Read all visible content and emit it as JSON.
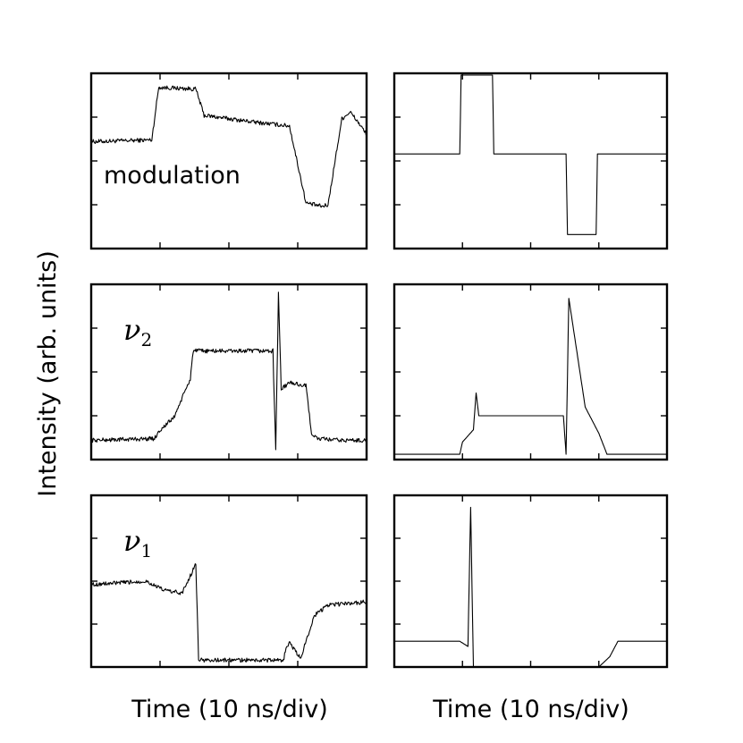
{
  "figure": {
    "ylabel": "Intensity (arb. units)",
    "xlabel_left": "Time (10 ns/div)",
    "xlabel_right": "Time (10 ns/div)"
  },
  "chart_data": [
    {
      "type": "line",
      "panel": "top-left",
      "label": "modulation",
      "kind": "measured",
      "x_ticks_per_axis": 3,
      "y_ticks_per_axis": 3,
      "ylim": [
        0,
        1
      ],
      "series": [
        {
          "x": [
            0,
            0.22,
            0.245,
            0.38,
            0.41,
            0.6,
            0.66,
            0.72,
            0.78,
            0.84,
            0.86,
            0.91,
            0.94,
            0.97,
            1.0
          ],
          "y": [
            0.61,
            0.62,
            0.92,
            0.91,
            0.76,
            0.72,
            0.71,
            0.7,
            0.26,
            0.24,
            0.25,
            0.74,
            0.78,
            0.72,
            0.65
          ]
        }
      ]
    },
    {
      "type": "line",
      "panel": "top-right",
      "kind": "simulated",
      "x_ticks_per_axis": 3,
      "y_ticks_per_axis": 3,
      "ylim": [
        0,
        1
      ],
      "series": [
        {
          "x": [
            0,
            0.24,
            0.245,
            0.36,
            0.365,
            0.63,
            0.635,
            0.74,
            0.745,
            1.0
          ],
          "y": [
            0.54,
            0.54,
            0.99,
            0.99,
            0.54,
            0.54,
            0.08,
            0.08,
            0.54,
            0.54
          ]
        }
      ]
    },
    {
      "type": "line",
      "panel": "middle-left",
      "label_base": "ν",
      "label_sub": "2",
      "kind": "measured",
      "x_ticks_per_axis": 3,
      "y_ticks_per_axis": 3,
      "ylim": [
        0,
        1
      ],
      "series": [
        {
          "x": [
            0,
            0.23,
            0.245,
            0.3,
            0.36,
            0.37,
            0.66,
            0.67,
            0.68,
            0.69,
            0.72,
            0.78,
            0.8,
            0.82,
            0.9,
            1.0
          ],
          "y": [
            0.11,
            0.12,
            0.16,
            0.24,
            0.46,
            0.62,
            0.62,
            0.05,
            0.95,
            0.4,
            0.44,
            0.42,
            0.15,
            0.12,
            0.11,
            0.11
          ]
        }
      ]
    },
    {
      "type": "line",
      "panel": "middle-right",
      "kind": "simulated",
      "x_ticks_per_axis": 3,
      "y_ticks_per_axis": 3,
      "ylim": [
        0,
        1
      ],
      "series": [
        {
          "x": [
            0,
            0.24,
            0.25,
            0.29,
            0.3,
            0.31,
            0.62,
            0.63,
            0.64,
            0.7,
            0.75,
            0.78,
            1.0
          ],
          "y": [
            0.03,
            0.03,
            0.1,
            0.17,
            0.38,
            0.25,
            0.25,
            0.03,
            0.92,
            0.3,
            0.15,
            0.03,
            0.03
          ]
        }
      ]
    },
    {
      "type": "line",
      "panel": "bottom-left",
      "label_base": "ν",
      "label_sub": "1",
      "kind": "measured",
      "x_ticks_per_axis": 3,
      "y_ticks_per_axis": 3,
      "ylim": [
        0,
        1
      ],
      "series": [
        {
          "x": [
            0,
            0.2,
            0.26,
            0.33,
            0.38,
            0.39,
            0.7,
            0.69,
            0.72,
            0.76,
            0.81,
            0.86,
            1.0
          ],
          "y": [
            0.48,
            0.5,
            0.45,
            0.43,
            0.6,
            0.04,
            0.04,
            0.05,
            0.14,
            0.05,
            0.3,
            0.36,
            0.38
          ]
        }
      ]
    },
    {
      "type": "line",
      "panel": "bottom-right",
      "kind": "simulated",
      "x_ticks_per_axis": 3,
      "y_ticks_per_axis": 3,
      "ylim": [
        0,
        1
      ],
      "series": [
        {
          "x": [
            0,
            0.24,
            0.27,
            0.28,
            0.29,
            0.75,
            0.79,
            0.82,
            1.0
          ],
          "y": [
            0.15,
            0.15,
            0.12,
            0.93,
            0.0,
            0.0,
            0.06,
            0.15,
            0.15
          ]
        }
      ]
    }
  ]
}
